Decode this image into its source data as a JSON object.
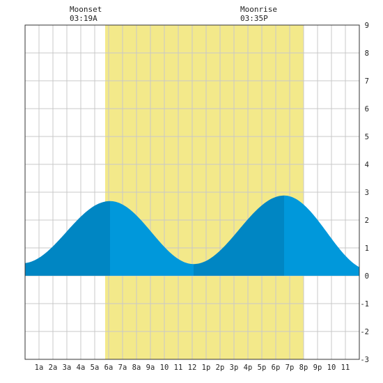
{
  "moon_events": [
    {
      "label": "Moonset",
      "time": "03:19A",
      "hour": 3.32
    },
    {
      "label": "Moonrise",
      "time": "03:35P",
      "hour": 15.58
    }
  ],
  "colors": {
    "background": "#ffffff",
    "grid": "#c8c8c8",
    "daylight": "#f3e98a",
    "tide_rising": "#0086c3",
    "tide_falling": "#0098db",
    "axis": "#333333"
  },
  "chart_data": {
    "type": "area",
    "title": "",
    "xlabel": "",
    "ylabel": "",
    "x_range": [
      0,
      24
    ],
    "y_range": [
      -3,
      9
    ],
    "grid": true,
    "x_tick_labels": [
      "1a",
      "2a",
      "3a",
      "4a",
      "5a",
      "6a",
      "7a",
      "8a",
      "9a",
      "10",
      "11",
      "12",
      "1p",
      "2p",
      "3p",
      "4p",
      "5p",
      "6p",
      "7p",
      "8p",
      "9p",
      "10",
      "11"
    ],
    "x_tick_hours": [
      1,
      2,
      3,
      4,
      5,
      6,
      7,
      8,
      9,
      10,
      11,
      12,
      13,
      14,
      15,
      16,
      17,
      18,
      19,
      20,
      21,
      22,
      23
    ],
    "y_ticks": [
      -3,
      -2,
      -1,
      0,
      1,
      2,
      3,
      4,
      5,
      6,
      7,
      8,
      9
    ],
    "daylight_hours": [
      5.75,
      20.0
    ],
    "tide_extremes": [
      {
        "hour": -0.2,
        "value": 0.45
      },
      {
        "hour": 6.1,
        "value": 2.68
      },
      {
        "hour": 12.1,
        "value": 0.42
      },
      {
        "hour": 18.6,
        "value": 2.88
      },
      {
        "hour": 24.8,
        "value": 0.2
      }
    ],
    "series": [
      {
        "values_at_hours": [
          0,
          1,
          2,
          3,
          4,
          5,
          6,
          7,
          8,
          9,
          10,
          11,
          12,
          13,
          14,
          15,
          16,
          17,
          18,
          19,
          20,
          21,
          22,
          23,
          24
        ],
        "values": [
          0.47,
          0.73,
          1.14,
          1.61,
          2.1,
          2.49,
          2.68,
          2.61,
          2.25,
          1.66,
          1.03,
          0.58,
          0.42,
          0.54,
          0.9,
          1.4,
          1.96,
          2.45,
          2.82,
          2.85,
          2.55,
          2.02,
          1.38,
          0.8,
          0.45
        ]
      }
    ]
  }
}
